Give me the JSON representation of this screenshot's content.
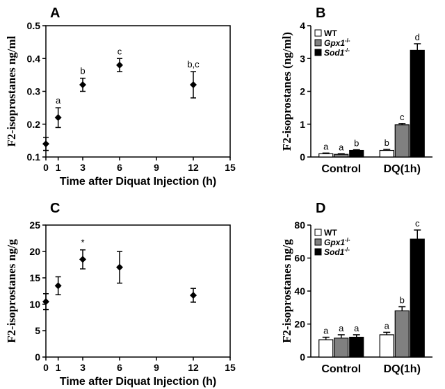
{
  "chart_data": [
    {
      "panel": "A",
      "type": "scatter",
      "title": "",
      "xlabel": "Time after Diquat Injection (h)",
      "ylabel": "F2-isoprostanes ng/ml",
      "xlim": [
        0,
        15
      ],
      "ylim": [
        0.1,
        0.5
      ],
      "xticks": [
        0,
        1,
        3,
        6,
        9,
        12,
        15
      ],
      "xtick_labels": [
        "0",
        "1",
        "3",
        "6",
        "9",
        "12",
        "15"
      ],
      "yticks": [
        0.1,
        0.2,
        0.3,
        0.4,
        0.5
      ],
      "ytick_labels": [
        "0.1",
        "0.2",
        "0.3",
        "0.4",
        "0.5"
      ],
      "x": [
        0,
        1,
        3,
        6,
        12
      ],
      "y": [
        0.14,
        0.22,
        0.32,
        0.38,
        0.32
      ],
      "err": [
        0.02,
        0.03,
        0.02,
        0.02,
        0.04
      ],
      "annotations": [
        "",
        "a",
        "b",
        "c",
        "b,c"
      ]
    },
    {
      "panel": "B",
      "type": "bar",
      "title": "",
      "xlabel": "",
      "ylabel": "F2-isoprostanes (ng/ml)",
      "ylim": [
        0,
        4
      ],
      "yticks": [
        0,
        1,
        2,
        3,
        4
      ],
      "ytick_labels": [
        "0",
        "1",
        "2",
        "3",
        "4"
      ],
      "categories": [
        "Control",
        "DQ(1h)"
      ],
      "series": [
        {
          "name": "WT",
          "name_sup": "",
          "color": "#ffffff",
          "values": [
            0.1,
            0.2
          ],
          "err": [
            0.02,
            0.03
          ],
          "labels": [
            "a",
            "b"
          ]
        },
        {
          "name": "Gpx1",
          "name_sup": "-/-",
          "color": "#808080",
          "values": [
            0.08,
            0.98
          ],
          "err": [
            0.02,
            0.04
          ],
          "labels": [
            "a",
            "c"
          ]
        },
        {
          "name": "Sod1",
          "name_sup": "-/-",
          "color": "#000000",
          "values": [
            0.2,
            3.25
          ],
          "err": [
            0.02,
            0.2
          ],
          "labels": [
            "b",
            "d"
          ]
        }
      ],
      "legend": "top-left"
    },
    {
      "panel": "C",
      "type": "scatter",
      "title": "",
      "xlabel": "Time after Diquat Injection (h)",
      "ylabel": "F2-isoprostanes ng/g",
      "xlim": [
        0,
        15
      ],
      "ylim": [
        0,
        25
      ],
      "xticks": [
        0,
        1,
        3,
        6,
        9,
        12,
        15
      ],
      "xtick_labels": [
        "0",
        "1",
        "3",
        "6",
        "9",
        "12",
        "15"
      ],
      "yticks": [
        0,
        5,
        10,
        15,
        20,
        25
      ],
      "ytick_labels": [
        "0",
        "5",
        "10",
        "15",
        "20",
        "25"
      ],
      "x": [
        0,
        1,
        3,
        6,
        12
      ],
      "y": [
        10.5,
        13.5,
        18.5,
        17.0,
        11.7
      ],
      "err": [
        1.5,
        1.7,
        1.8,
        3.0,
        1.3
      ],
      "annotations": [
        "",
        "",
        "*",
        "",
        ""
      ]
    },
    {
      "panel": "D",
      "type": "bar",
      "title": "",
      "xlabel": "",
      "ylabel": "F2-isoprostanes ng/g",
      "ylim": [
        0,
        80
      ],
      "yticks": [
        0,
        20,
        40,
        60,
        80
      ],
      "ytick_labels": [
        "0",
        "20",
        "40",
        "60",
        "80"
      ],
      "categories": [
        "Control",
        "DQ(1h)"
      ],
      "series": [
        {
          "name": "WT",
          "name_sup": "",
          "color": "#ffffff",
          "values": [
            10.5,
            13.5
          ],
          "err": [
            1.5,
            1.5
          ],
          "labels": [
            "a",
            "a"
          ]
        },
        {
          "name": "Gpx1",
          "name_sup": "-/-",
          "color": "#808080",
          "values": [
            11.5,
            28.0
          ],
          "err": [
            2.0,
            2.5
          ],
          "labels": [
            "a",
            "b"
          ]
        },
        {
          "name": "Sod1",
          "name_sup": "-/-",
          "color": "#000000",
          "values": [
            12.0,
            71.5
          ],
          "err": [
            1.5,
            5.5
          ],
          "labels": [
            "a",
            "c"
          ]
        }
      ],
      "legend": "top-left"
    }
  ]
}
